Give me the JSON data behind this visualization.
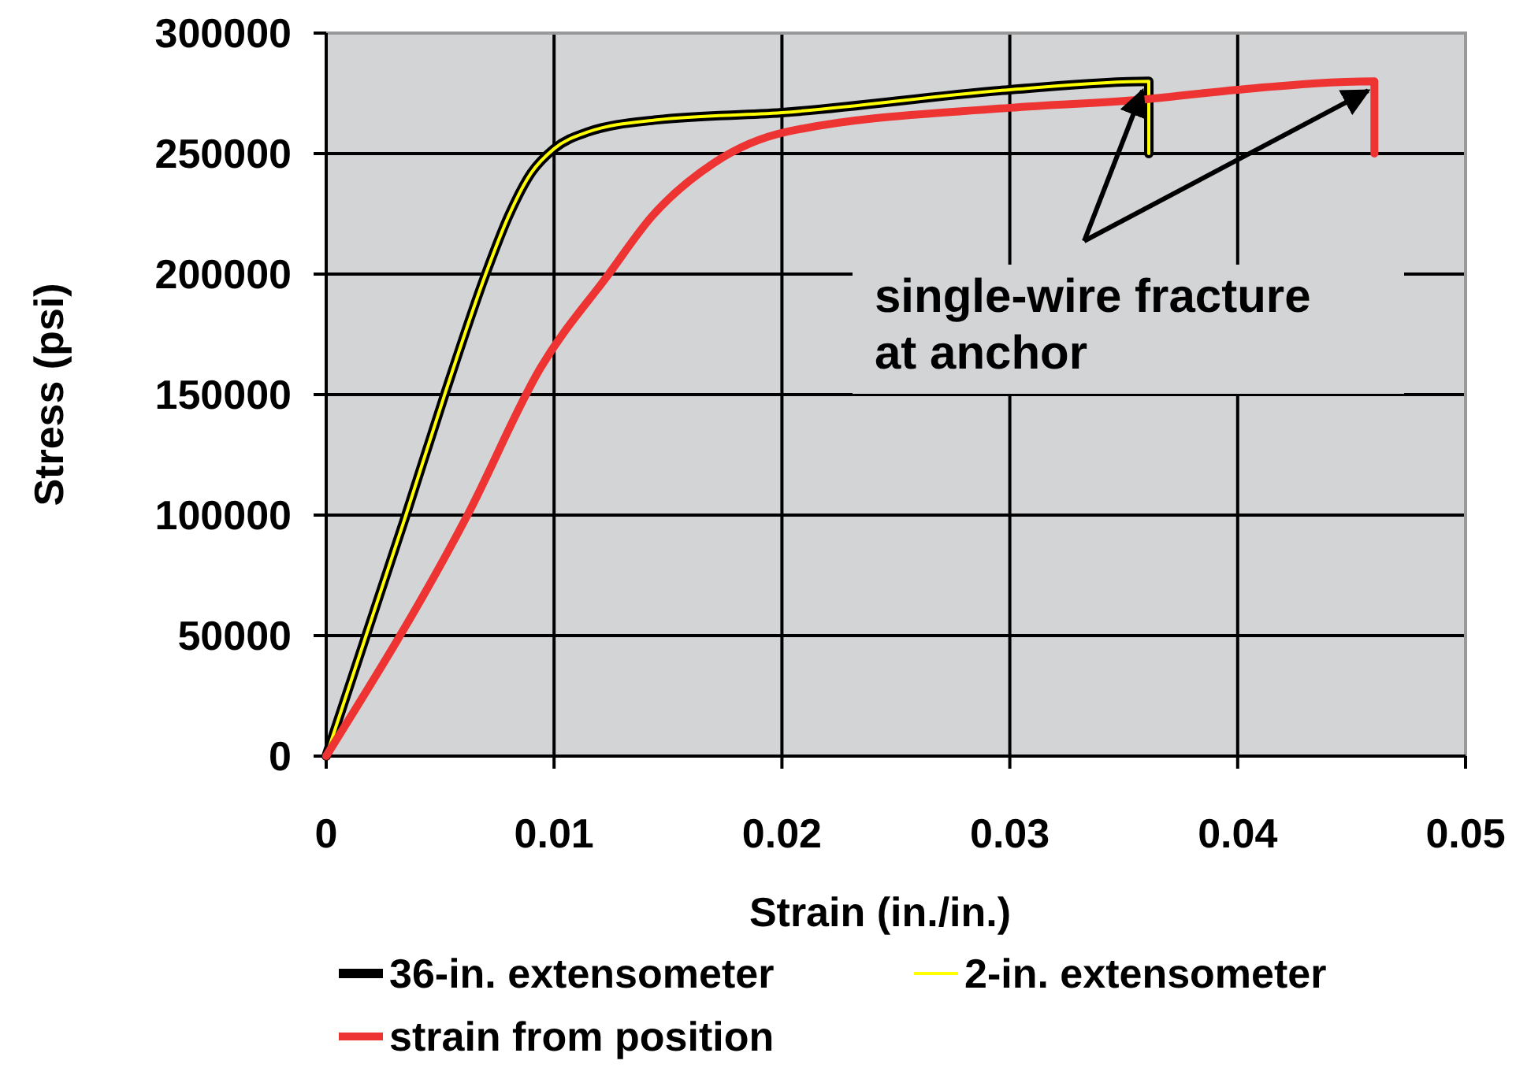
{
  "chart_data": {
    "type": "line",
    "xlabel": "Strain (in./in.)",
    "ylabel": "Stress (psi)",
    "xlim": [
      0,
      0.05
    ],
    "xticks": [
      0,
      0.01,
      0.02,
      0.03,
      0.04,
      0.05
    ],
    "ylim": [
      0,
      300000
    ],
    "yticks": [
      0,
      50000,
      100000,
      150000,
      200000,
      250000,
      300000
    ],
    "grid": true,
    "legend": "bottom",
    "marker": "none",
    "line_style": "solid",
    "annotations": [
      {
        "text": "single-wire fracture\nat anchor",
        "x": 0.0361,
        "y": 280000
      }
    ],
    "series": [
      {
        "name": "36-in. extensometer",
        "color": "#000000",
        "x": [
          0,
          0.0035,
          0.0052,
          0.007,
          0.008,
          0.009,
          0.01,
          0.0115,
          0.0145,
          0.02,
          0.03,
          0.0361,
          0.0361
        ],
        "values": [
          0,
          100000,
          150000,
          200000,
          224000,
          242000,
          252000,
          259000,
          264000,
          267000,
          276500,
          280000,
          250000
        ]
      },
      {
        "name": "2-in. extensometer",
        "color": "#ffff00",
        "x": [
          0,
          0.0035,
          0.0052,
          0.007,
          0.008,
          0.009,
          0.01,
          0.0115,
          0.0145,
          0.02,
          0.03,
          0.0361,
          0.0361
        ],
        "values": [
          0,
          100000,
          150000,
          200000,
          224000,
          242000,
          252000,
          259000,
          264000,
          267000,
          276500,
          280000,
          250000
        ]
      },
      {
        "name": "strain from position",
        "color": "#ee3333",
        "x": [
          0,
          0.0062,
          0.0094,
          0.0124,
          0.0143,
          0.017,
          0.0202,
          0.03,
          0.0359,
          0.04,
          0.046,
          0.046
        ],
        "values": [
          0,
          100000,
          161000,
          200000,
          224000,
          246000,
          259000,
          269000,
          272500,
          276500,
          280000,
          250000
        ]
      }
    ]
  }
}
